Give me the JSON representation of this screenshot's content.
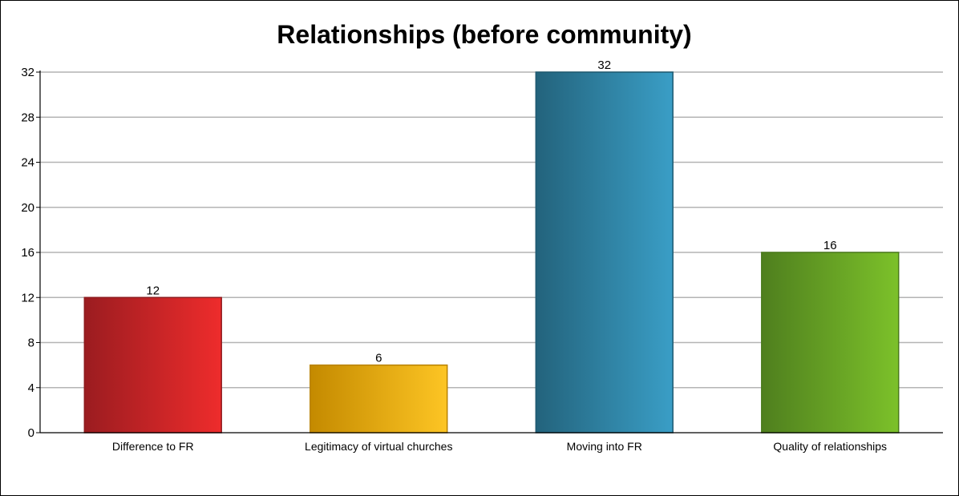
{
  "chart_data": {
    "type": "bar",
    "title": "Relationships (before community)",
    "xlabel": "",
    "ylabel": "",
    "categories": [
      "Difference to FR",
      "Legitimacy of virtual churches",
      "Moving into FR",
      "Quality of relationships"
    ],
    "values": [
      12,
      6,
      32,
      16
    ],
    "ylim": [
      0,
      32
    ],
    "yticks": [
      0,
      4,
      8,
      12,
      16,
      20,
      24,
      28,
      32
    ],
    "grid": true,
    "legend": "none",
    "colors": [
      {
        "dark": "#9b1c20",
        "light": "#ee2c2c",
        "stroke": "#8e1a1d"
      },
      {
        "dark": "#c48a00",
        "light": "#fdc524",
        "stroke": "#b88100"
      },
      {
        "dark": "#23637c",
        "light": "#3a9ec6",
        "stroke": "#1f5a71"
      },
      {
        "dark": "#4f7f1e",
        "light": "#7cc12a",
        "stroke": "#4a7a1c"
      }
    ]
  }
}
